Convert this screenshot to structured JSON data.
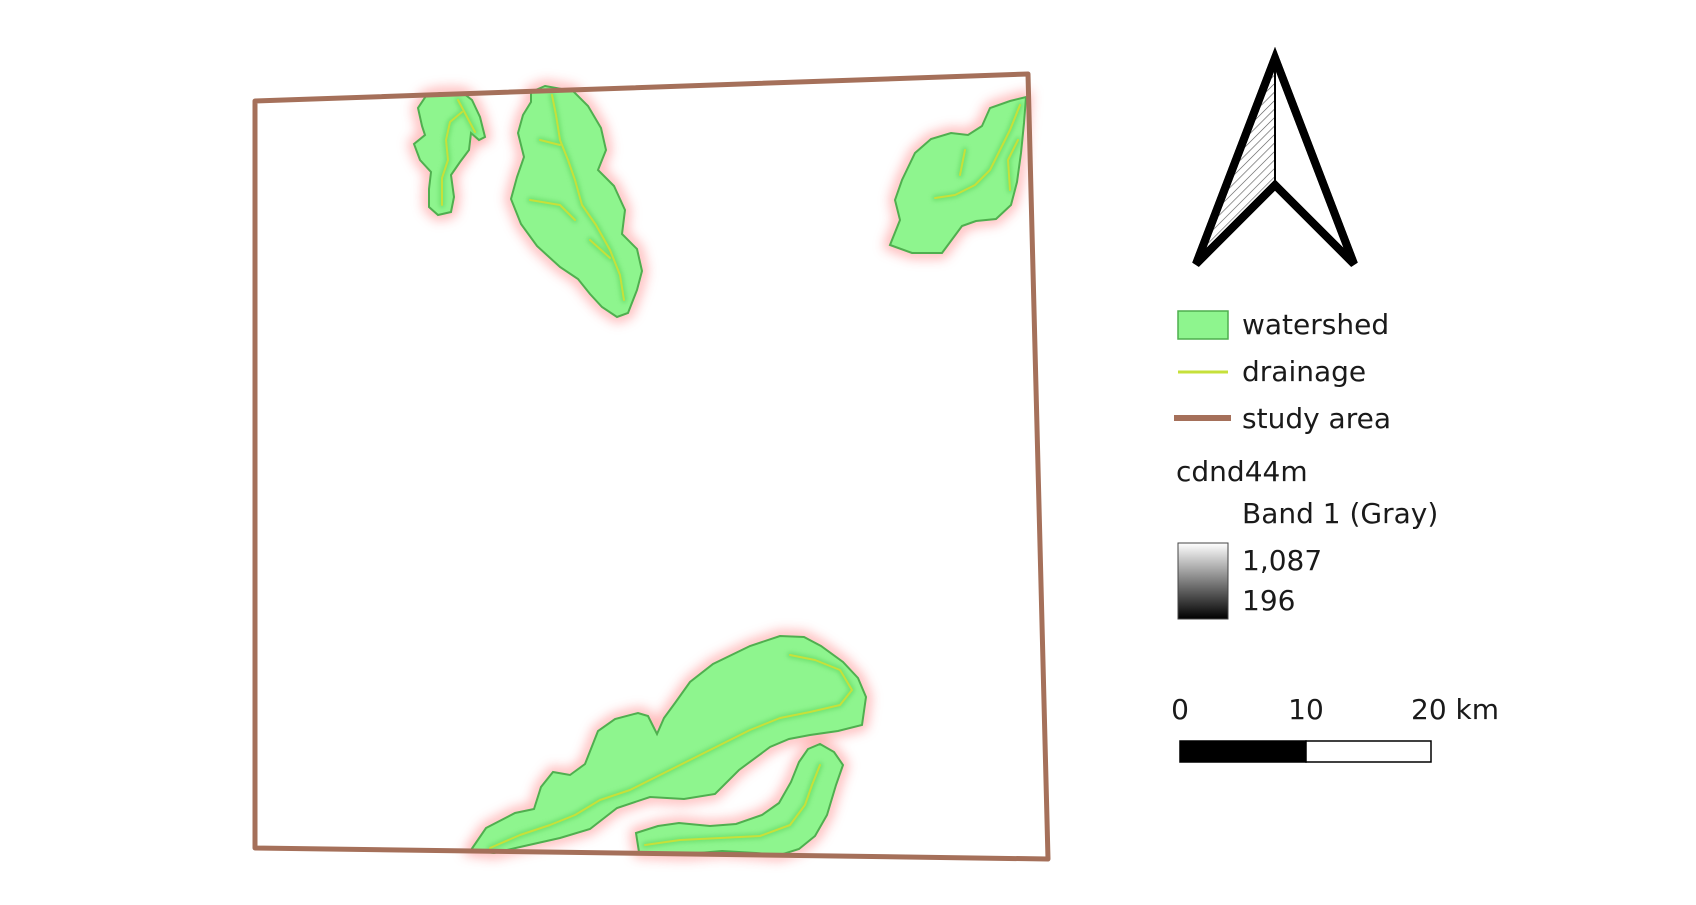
{
  "legend": {
    "items": [
      {
        "label": "watershed",
        "symbol": "fill",
        "fill": "#8ef58e",
        "stroke": "#4faf4f"
      },
      {
        "label": "drainage",
        "symbol": "line",
        "stroke": "#c6e03a",
        "glow": "#ff6b6b"
      },
      {
        "label": "study area",
        "symbol": "line",
        "stroke": "#a5705a"
      }
    ],
    "raster": {
      "title": "cdnd44m",
      "band": "Band 1 (Gray)",
      "max_label": "1,087",
      "min_label": "196"
    }
  },
  "scale_bar": {
    "labels": [
      "0",
      "10",
      "20 km"
    ]
  },
  "north_arrow": {
    "icon": "north-arrow-icon"
  },
  "colors": {
    "study_area": "#a5705a",
    "watershed_fill": "#8ef58e",
    "watershed_stroke": "#4faf4f",
    "drainage": "#c6e03a",
    "drainage_glow": "#ff6b6b"
  }
}
